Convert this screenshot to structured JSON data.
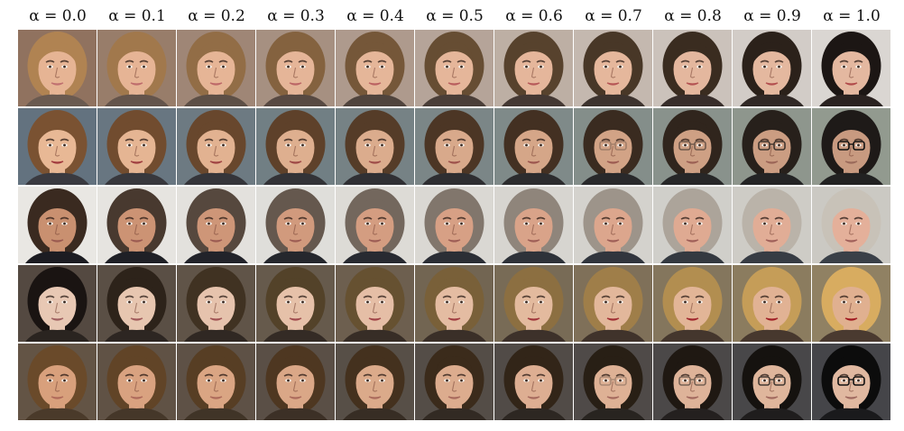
{
  "figure": {
    "alpha_labels": [
      "α = 0.0",
      "α = 0.1",
      "α = 0.2",
      "α = 0.3",
      "α = 0.4",
      "α = 0.5",
      "α = 0.6",
      "α = 0.7",
      "α = 0.8",
      "α = 0.9",
      "α = 1.0"
    ],
    "rows": [
      {
        "start": {
          "skin": "#e6b494",
          "hair": "#b08352",
          "bg": "#8a6a55",
          "lip": "#c07070",
          "shirt": "#6a5a50",
          "glasses": false
        },
        "end": {
          "skin": "#e4b8a0",
          "hair": "#1c1614",
          "bg": "#d8d4d0",
          "lip": "#b04a4a",
          "shirt": "#2a2220",
          "glasses": false
        }
      },
      {
        "start": {
          "skin": "#e8b895",
          "hair": "#7a5232",
          "bg": "#5a6a78",
          "lip": "#a0383c",
          "shirt": "#3a3a40",
          "glasses": false
        },
        "end": {
          "skin": "#c89a80",
          "hair": "#1e1a18",
          "bg": "#8c9488",
          "lip": "#9a6a5a",
          "shirt": "#222",
          "glasses": true
        }
      },
      {
        "start": {
          "skin": "#c99070",
          "hair": "#3a2a20",
          "bg": "#e8e6e2",
          "lip": "#9a5a50",
          "shirt": "#1c1c22",
          "glasses": false
        },
        "end": {
          "skin": "#e4b09a",
          "hair": "#c8c2b8",
          "bg": "#c8c6c0",
          "lip": "#a0605a",
          "shirt": "#3a4048",
          "glasses": false
        }
      },
      {
        "start": {
          "skin": "#e8c8b4",
          "hair": "#1a1412",
          "bg": "#4a3e36",
          "lip": "#a06060",
          "shirt": "#2a2420",
          "glasses": false
        },
        "end": {
          "skin": "#e0b090",
          "hair": "#d8ac60",
          "bg": "#8a7a5a",
          "lip": "#a01820",
          "shirt": "#4a3a30",
          "glasses": false
        }
      },
      {
        "start": {
          "skin": "#d8a07c",
          "hair": "#6a4a2a",
          "bg": "#5a4a3a",
          "lip": "#b06a5a",
          "shirt": "#4a3a2a",
          "glasses": false
        },
        "end": {
          "skin": "#e0b8a0",
          "hair": "#0c0c0c",
          "bg": "#3a3a3e",
          "lip": "#a06a60",
          "shirt": "#1a1a1c",
          "glasses": true
        }
      }
    ]
  }
}
